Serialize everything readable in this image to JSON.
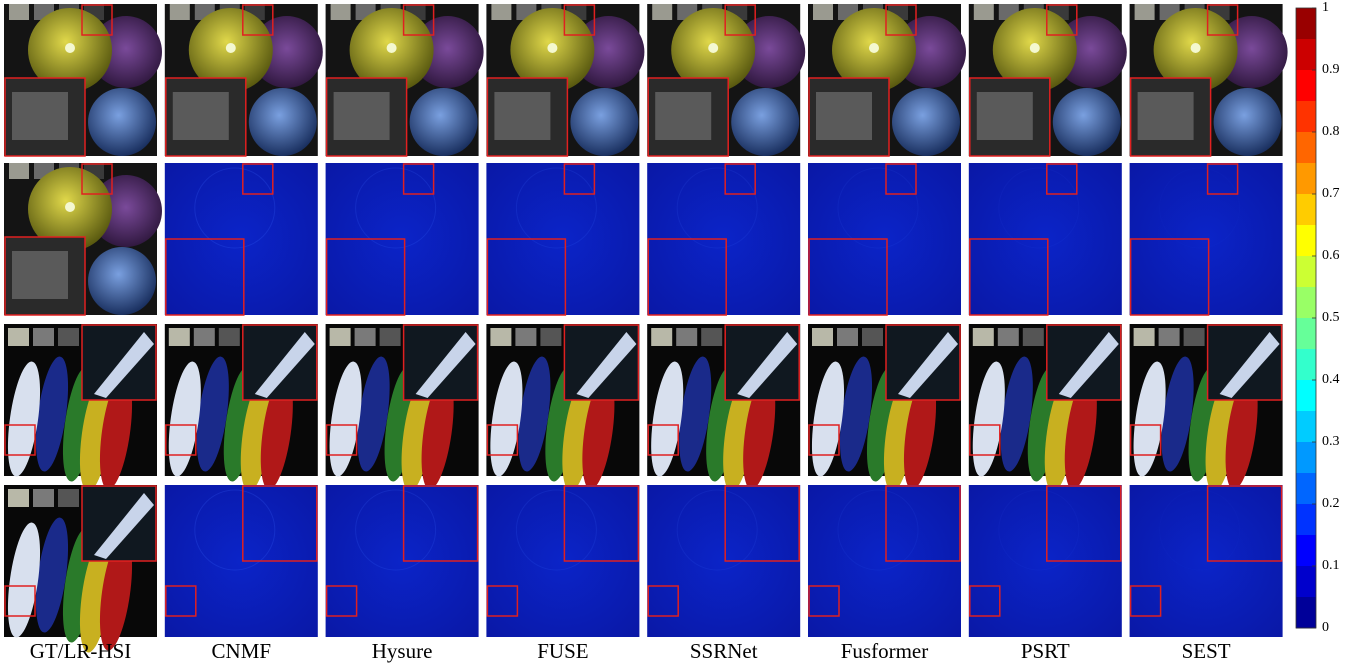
{
  "columns": [
    "GT/LR-HSI",
    "CNMF",
    "Hysure",
    "FUSE",
    "SSRNet",
    "Fusformer",
    "PSRT",
    "SEST"
  ],
  "colorbar": {
    "range": [
      0,
      1
    ],
    "ticks": [
      0,
      0.1,
      0.2,
      0.3,
      0.4,
      0.5,
      0.6,
      0.7,
      0.8,
      0.9,
      1
    ]
  }
}
